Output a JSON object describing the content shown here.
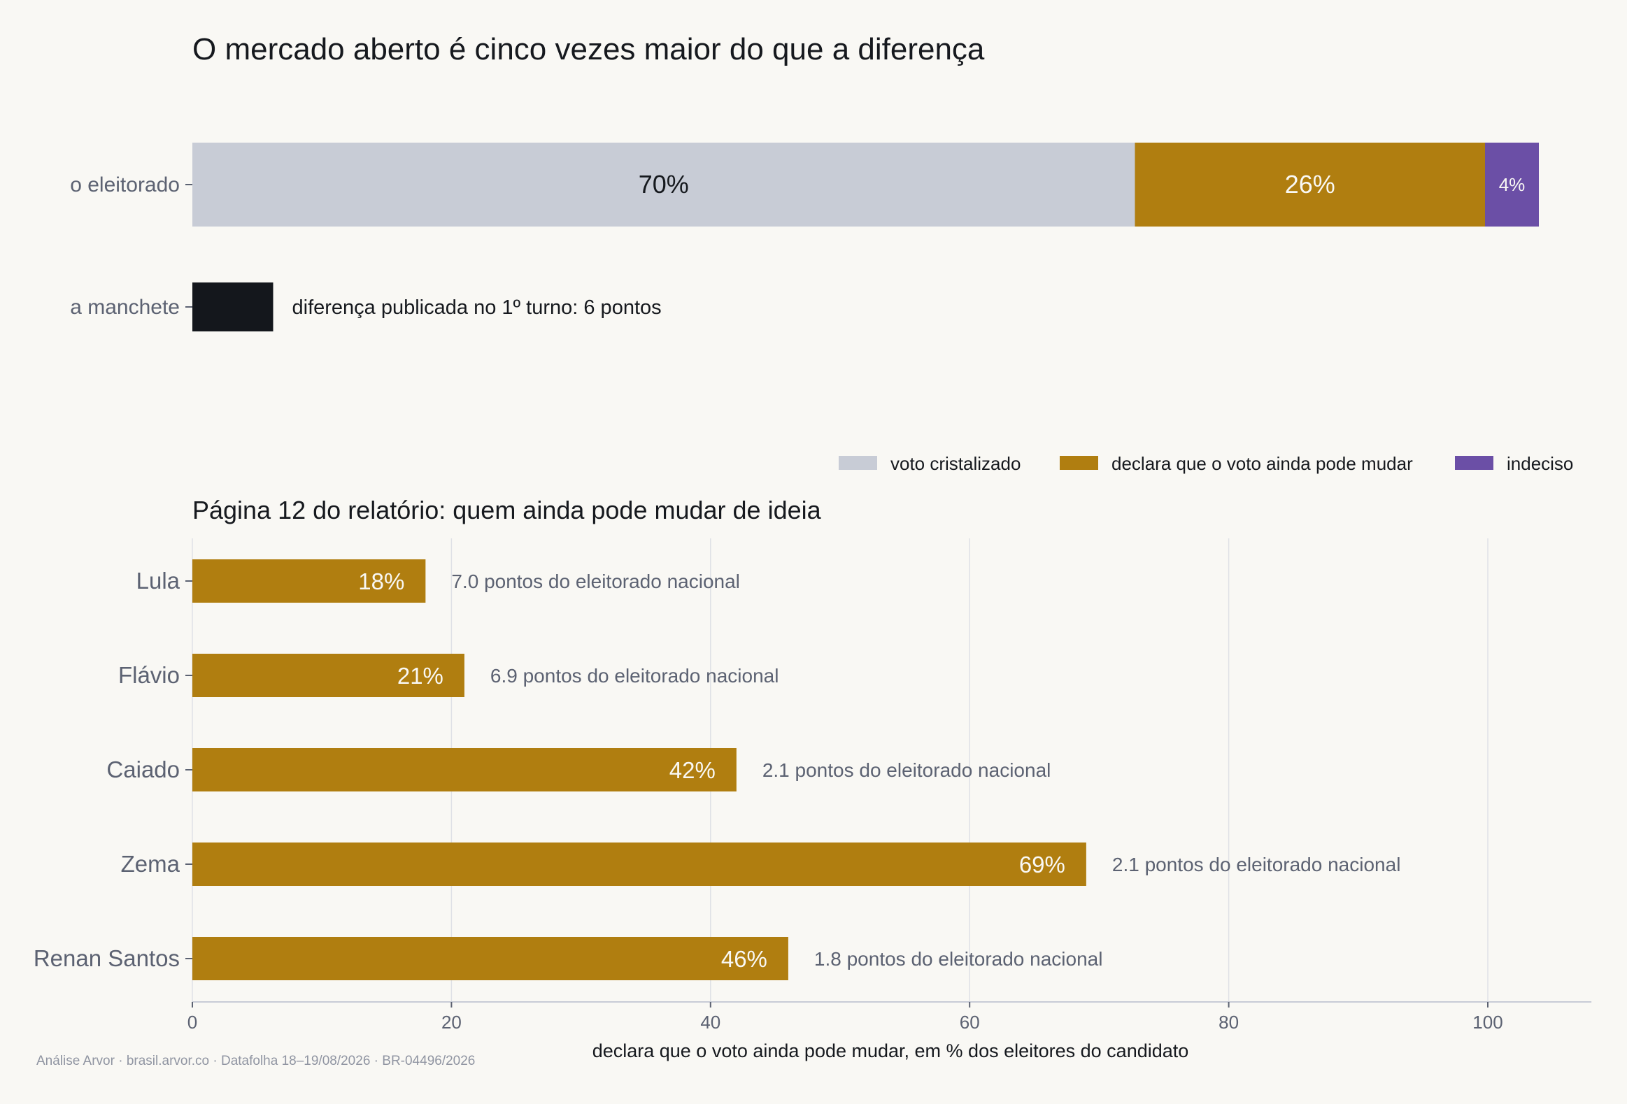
{
  "chart_data": [
    {
      "type": "bar",
      "orientation": "horizontal",
      "stacked": true,
      "title": "O mercado aberto é cinco vezes maior do que a diferença",
      "categories": [
        "o eleitorado",
        "a manchete"
      ],
      "series": [
        {
          "name": "voto cristalizado",
          "values": [
            70,
            null
          ],
          "color": "#c8ccd6",
          "labels": [
            "70%",
            null
          ]
        },
        {
          "name": "declara que o voto ainda pode mudar",
          "values": [
            26,
            null
          ],
          "color": "#b07e10",
          "labels": [
            "26%",
            null
          ]
        },
        {
          "name": "indeciso",
          "values": [
            4,
            null
          ],
          "color": "#6b4fa6",
          "labels": [
            "4%",
            null
          ]
        },
        {
          "values": [
            null,
            6
          ],
          "color": "#14171c"
        }
      ],
      "annotation": "diferença publicada no 1º turno: 6 pontos"
    },
    {
      "type": "bar",
      "orientation": "horizontal",
      "title": "Página 12 do relatório: quem ainda pode mudar de ideia",
      "categories": [
        "Lula",
        "Flávio",
        "Caiado",
        "Zema",
        "Renan Santos"
      ],
      "values": [
        18,
        21,
        42,
        69,
        46
      ],
      "bar_labels": [
        "18%",
        "21%",
        "42%",
        "69%",
        "46%"
      ],
      "annotations": [
        "7.0 pontos do eleitorado nacional",
        "6.9 pontos do eleitorado nacional",
        "2.1 pontos do eleitorado nacional",
        "2.1 pontos do eleitorado nacional",
        "1.8 pontos do eleitorado nacional"
      ],
      "color": "#b07e10",
      "xlabel": "declara que o voto ainda pode mudar, em % dos eleitores do candidato",
      "xlim": [
        0,
        108
      ],
      "xticks": [
        0,
        20,
        40,
        60,
        80,
        100
      ],
      "grid": "vertical"
    }
  ],
  "legend": {
    "placement": "between-panels-right",
    "items": [
      {
        "label": "voto cristalizado",
        "color": "#c8ccd6"
      },
      {
        "label": "declara que o voto ainda pode mudar",
        "color": "#b07e10"
      },
      {
        "label": "indeciso",
        "color": "#6b4fa6"
      }
    ]
  },
  "footer": "Análise Arvor · brasil.arvor.co · Datafolha 18–19/08/2026 · BR-04496/2026"
}
